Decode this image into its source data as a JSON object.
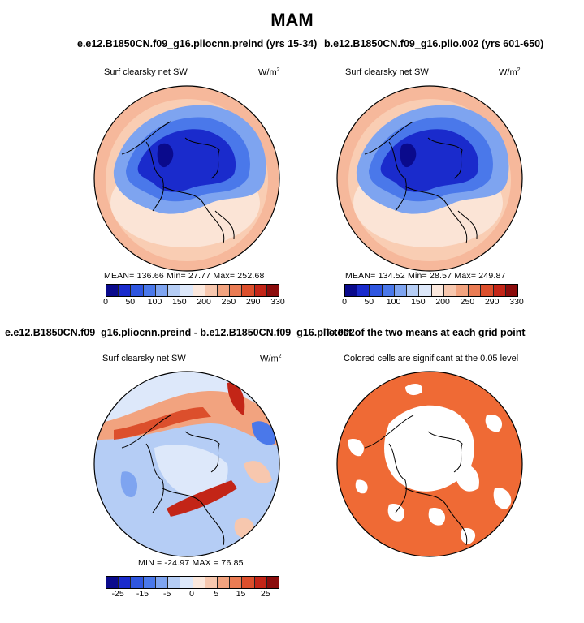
{
  "title": "MAM",
  "panels": [
    {
      "title": "e.e12.B1850CN.f09_g16.pliocnn.preind (yrs 15-34)",
      "variable": "Surf clearsky net SW",
      "units_base": "W/m",
      "units_exp": "2",
      "stats": "MEAN= 136.66   Min=  27.77  Max= 252.68",
      "colorbar": {
        "colors": [
          "#0a0a8c",
          "#1a2bcc",
          "#2f56e0",
          "#4a78ea",
          "#7ea4f0",
          "#b5cdf5",
          "#dde8fa",
          "#fbe8dd",
          "#f7c7ae",
          "#f2a37f",
          "#ea7c54",
          "#dc4f2c",
          "#c32517",
          "#8b0c0c"
        ],
        "ticks": [
          "0",
          "50",
          "100",
          "150",
          "200",
          "250",
          "290",
          "330"
        ]
      }
    },
    {
      "title": "b.e12.B1850CN.f09_g16.plio.002 (yrs 601-650)",
      "variable": "Surf clearsky net SW",
      "units_base": "W/m",
      "units_exp": "2",
      "stats": "MEAN= 134.52   Min=  28.57  Max= 249.87",
      "colorbar": {
        "colors": [
          "#0a0a8c",
          "#1a2bcc",
          "#2f56e0",
          "#4a78ea",
          "#7ea4f0",
          "#b5cdf5",
          "#dde8fa",
          "#fbe8dd",
          "#f7c7ae",
          "#f2a37f",
          "#ea7c54",
          "#dc4f2c",
          "#c32517",
          "#8b0c0c"
        ],
        "ticks": [
          "0",
          "50",
          "100",
          "150",
          "200",
          "250",
          "290",
          "330"
        ]
      }
    },
    {
      "title": "e.e12.B1850CN.f09_g16.pliocnn.preind - b.e12.B1850CN.f09_g16.plio.002",
      "variable": "Surf clearsky net SW",
      "units_base": "W/m",
      "units_exp": "2",
      "stats": "MIN = -24.97  MAX =  76.85",
      "colorbar": {
        "colors": [
          "#0a0a8c",
          "#1a2bcc",
          "#2f56e0",
          "#4a78ea",
          "#7ea4f0",
          "#b5cdf5",
          "#dde8fa",
          "#fbe8dd",
          "#f7c7ae",
          "#f2a37f",
          "#ea7c54",
          "#dc4f2c",
          "#c32517",
          "#8b0c0c"
        ],
        "ticks": [
          "-25",
          "-15",
          "-5",
          "0",
          "5",
          "15",
          "25"
        ]
      }
    },
    {
      "title": "T-test of the two means at each grid point",
      "subtitle": "Colored cells are significant at the 0.05 level",
      "fill_color": "#ef6a35"
    }
  ]
}
